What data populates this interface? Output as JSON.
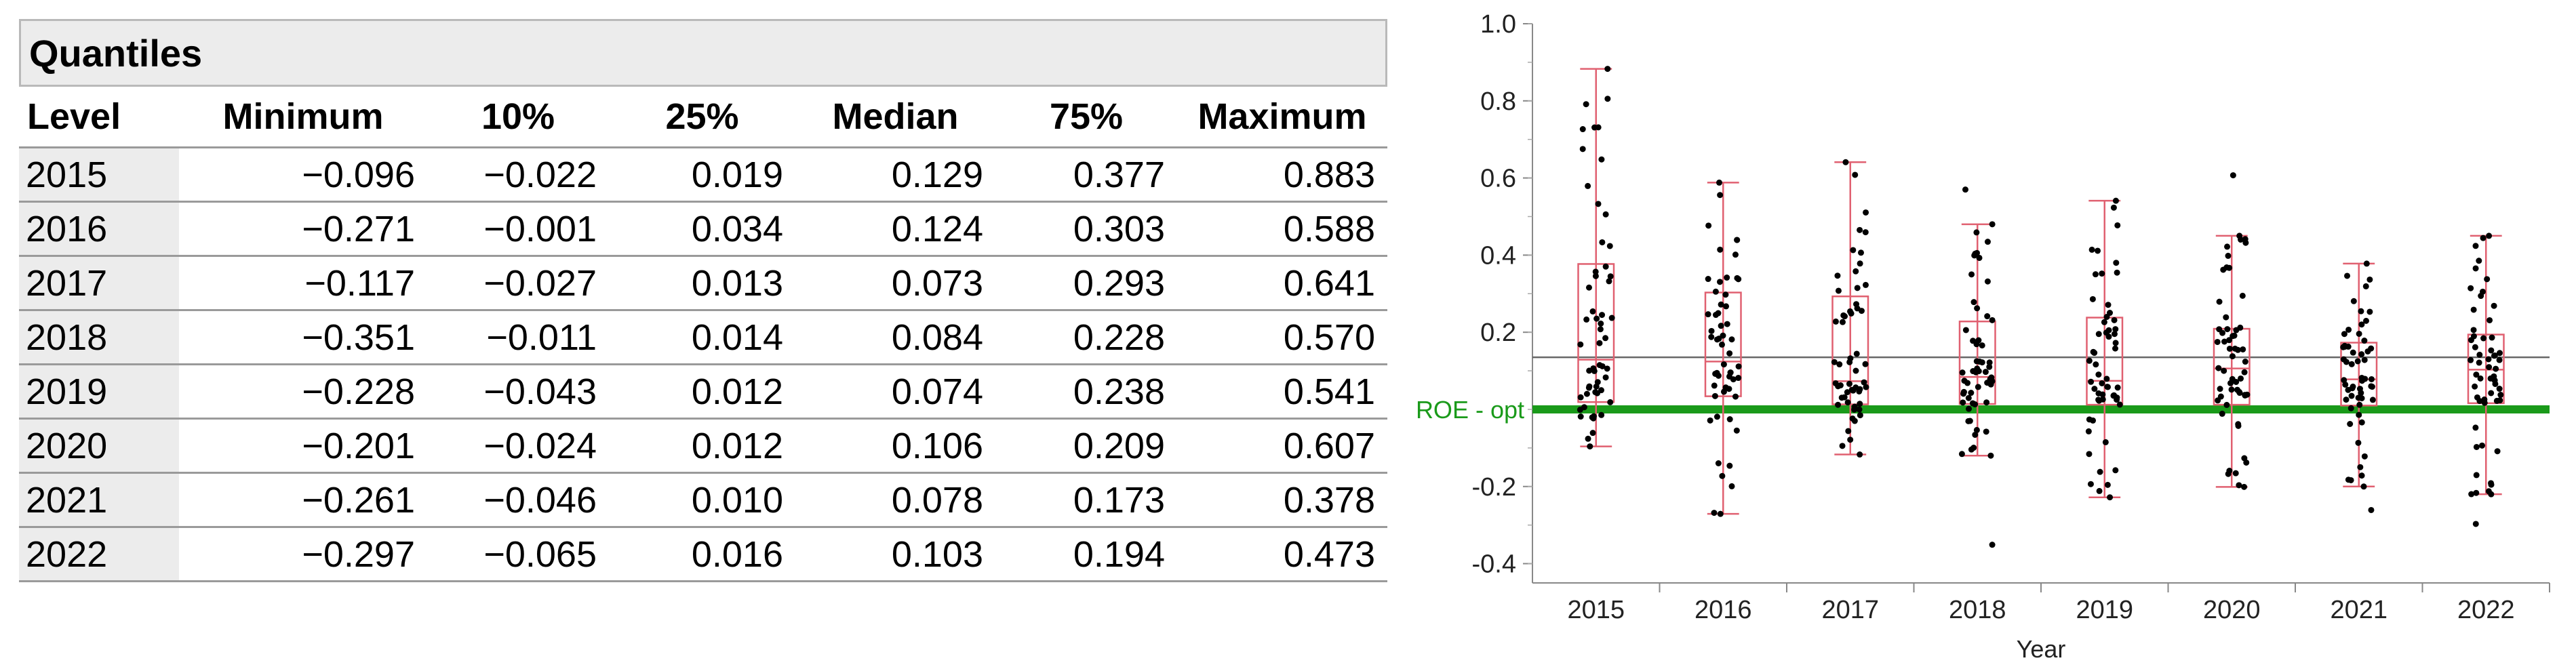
{
  "table": {
    "title": "Quantiles",
    "columns": [
      "Level",
      "Minimum",
      "10%",
      "25%",
      "Median",
      "75%",
      "Maximum"
    ],
    "rows": [
      [
        "2015",
        "−0.096",
        "−0.022",
        "0.019",
        "0.129",
        "0.377",
        "0.883"
      ],
      [
        "2016",
        "−0.271",
        "−0.001",
        "0.034",
        "0.124",
        "0.303",
        "0.588"
      ],
      [
        "2017",
        "−0.117",
        "−0.027",
        "0.013",
        "0.073",
        "0.293",
        "0.641"
      ],
      [
        "2018",
        "−0.351",
        "−0.011",
        "0.014",
        "0.084",
        "0.228",
        "0.570"
      ],
      [
        "2019",
        "−0.228",
        "−0.043",
        "0.012",
        "0.074",
        "0.238",
        "0.541"
      ],
      [
        "2020",
        "−0.201",
        "−0.024",
        "0.012",
        "0.106",
        "0.209",
        "0.607"
      ],
      [
        "2021",
        "−0.261",
        "−0.046",
        "0.010",
        "0.078",
        "0.173",
        "0.378"
      ],
      [
        "2022",
        "−0.297",
        "−0.065",
        "0.016",
        "0.103",
        "0.194",
        "0.473"
      ]
    ]
  },
  "chart_data": {
    "type": "box",
    "xlabel": "Year",
    "ylabel": "",
    "ylim": [
      -0.45,
      1.0
    ],
    "yticks": [
      1.0,
      0.8,
      0.6,
      0.4,
      0.2,
      -0.2,
      -0.4
    ],
    "ytick_labels": [
      "1.0",
      "0.8",
      "0.6",
      "0.4",
      "0.2",
      "-0.2",
      "-0.4"
    ],
    "categories": [
      "2015",
      "2016",
      "2017",
      "2018",
      "2019",
      "2020",
      "2021",
      "2022"
    ],
    "boxes": [
      {
        "min": -0.096,
        "q1": 0.019,
        "median": 0.129,
        "q3": 0.377,
        "max": 0.883
      },
      {
        "min": -0.271,
        "q1": 0.034,
        "median": 0.124,
        "q3": 0.303,
        "max": 0.588
      },
      {
        "min": -0.117,
        "q1": 0.013,
        "median": 0.073,
        "q3": 0.293,
        "max": 0.641
      },
      {
        "min": -0.351,
        "q1": 0.014,
        "median": 0.084,
        "q3": 0.228,
        "max": 0.57
      },
      {
        "min": -0.228,
        "q1": 0.012,
        "median": 0.074,
        "q3": 0.238,
        "max": 0.541
      },
      {
        "min": -0.201,
        "q1": 0.012,
        "median": 0.106,
        "q3": 0.209,
        "max": 0.607
      },
      {
        "min": -0.261,
        "q1": 0.01,
        "median": 0.078,
        "q3": 0.173,
        "max": 0.378
      },
      {
        "min": -0.297,
        "q1": 0.016,
        "median": 0.103,
        "q3": 0.194,
        "max": 0.473
      }
    ],
    "whisker_values": [
      {
        "low": -0.096,
        "high": 0.883
      },
      {
        "low": -0.271,
        "high": 0.588
      },
      {
        "low": -0.117,
        "high": 0.641
      },
      {
        "low": -0.12,
        "high": 0.48
      },
      {
        "low": -0.228,
        "high": 0.541
      },
      {
        "low": -0.201,
        "high": 0.45
      },
      {
        "low": -0.2,
        "high": 0.378
      },
      {
        "low": -0.22,
        "high": 0.45
      }
    ],
    "outliers": [
      [],
      [],
      [],
      [
        -0.351,
        0.57
      ],
      [],
      [
        0.607
      ],
      [
        -0.261
      ],
      [
        -0.297
      ]
    ],
    "points_shown": true,
    "grand_mean_line": 0.135,
    "reference_line": {
      "value": 0.0,
      "label": "ROE - opt",
      "color": "#1a9a1a"
    },
    "box_color": "#e06070",
    "point_color": "#000000"
  }
}
